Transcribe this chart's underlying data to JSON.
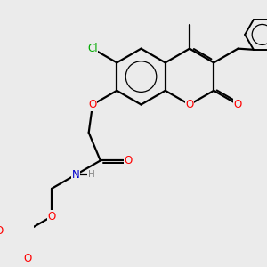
{
  "background_color": "#ebebeb",
  "atom_colors": {
    "C": "#000000",
    "O": "#ff0000",
    "N": "#0000cd",
    "Cl": "#00aa00",
    "H": "#808080"
  },
  "bond_color": "#000000",
  "bond_width": 1.6,
  "font_size_atom": 8.5,
  "title": ""
}
